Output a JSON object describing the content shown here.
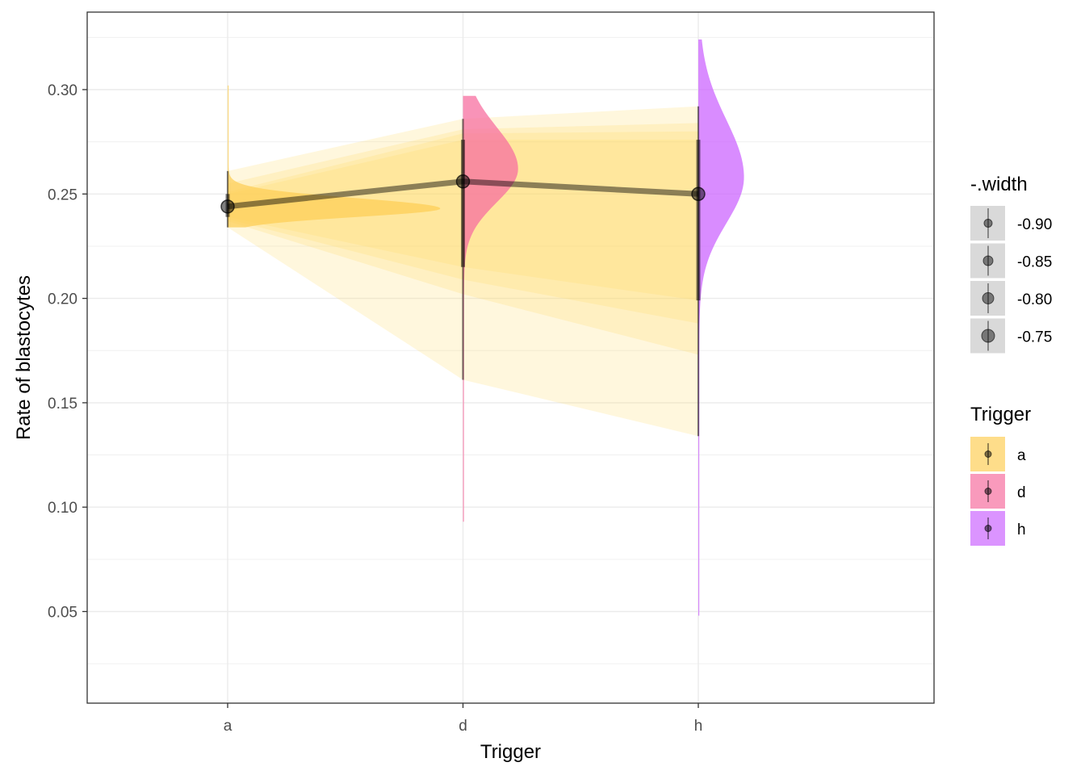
{
  "chart_data": {
    "type": "line",
    "xlabel": "Trigger",
    "ylabel": "Rate of blastocytes",
    "categories": [
      "a",
      "d",
      "h"
    ],
    "ylim": [
      0.01,
      0.34
    ],
    "yticks": [
      0.05,
      0.1,
      0.15,
      0.2,
      0.25,
      0.3
    ],
    "ytick_labels": [
      "0.05",
      "0.10",
      "0.15",
      "0.20",
      "0.25",
      "0.30"
    ],
    "grid": true,
    "legend_position": "right",
    "point_estimates": [
      0.244,
      0.256,
      0.25
    ],
    "intervals": [
      {
        "width": 0.75,
        "lower": [
          0.239,
          0.215,
          0.199
        ],
        "upper": [
          0.25,
          0.276,
          0.276
        ]
      },
      {
        "width": 0.8,
        "lower": [
          0.238,
          0.209,
          0.188
        ],
        "upper": [
          0.251,
          0.279,
          0.28
        ]
      },
      {
        "width": 0.85,
        "lower": [
          0.237,
          0.202,
          0.173
        ],
        "upper": [
          0.255,
          0.281,
          0.284
        ]
      },
      {
        "width": 0.9,
        "lower": [
          0.234,
          0.161,
          0.134
        ],
        "upper": [
          0.261,
          0.286,
          0.292
        ]
      }
    ],
    "ribbon_color": "#FFD966",
    "distributions": [
      {
        "category": "a",
        "color": "#FDCF58",
        "range": [
          0.234,
          0.302
        ],
        "mode": 0.243,
        "sd": 0.004,
        "max_width": 0.9
      },
      {
        "category": "d",
        "color": "#F76FA0",
        "range": [
          0.093,
          0.297
        ],
        "mode": 0.262,
        "sd": 0.016,
        "max_width": 0.23
      },
      {
        "category": "h",
        "color": "#CC66FF",
        "range": [
          0.048,
          0.324
        ],
        "mode": 0.258,
        "sd": 0.022,
        "max_width": 0.19
      }
    ],
    "legend_width": {
      "title": "-.width",
      "items": [
        {
          "label": "-0.90",
          "size": 5
        },
        {
          "label": "-0.85",
          "size": 6
        },
        {
          "label": "-0.80",
          "size": 7
        },
        {
          "label": "-0.75",
          "size": 8
        }
      ]
    },
    "legend_trigger": {
      "title": "Trigger",
      "items": [
        {
          "label": "a",
          "color": "#FDCF58"
        },
        {
          "label": "d",
          "color": "#F76FA0"
        },
        {
          "label": "h",
          "color": "#CC66FF"
        }
      ]
    }
  }
}
